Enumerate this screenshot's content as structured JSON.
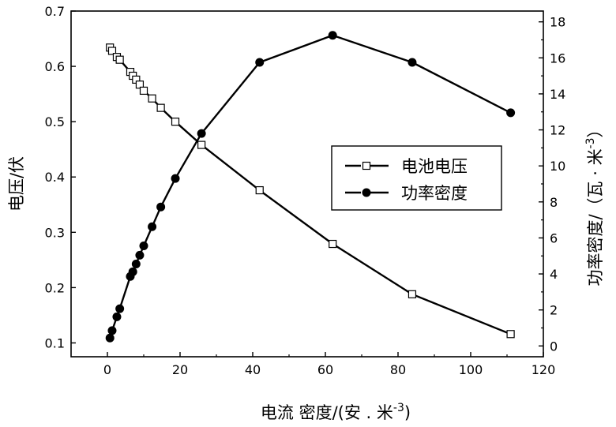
{
  "chart_data": {
    "type": "line",
    "title": "",
    "xlabel": "电流 密度/(安 . 米",
    "xlabel_sup": "-3",
    "xlabel_close": ")",
    "ylabel_left": "电压/伏",
    "ylabel_right": "功率密度/（瓦 · 米",
    "ylabel_right_sup": "-3",
    "ylabel_right_close": "）",
    "xlim": [
      -10,
      120
    ],
    "ylim_left": [
      0.075,
      0.7
    ],
    "ylim_right": [
      -0.6,
      18.6
    ],
    "x_ticks": [
      0,
      20,
      40,
      60,
      80,
      100,
      120
    ],
    "y_left_ticks": [
      0.1,
      0.2,
      0.3,
      0.4,
      0.5,
      0.6,
      0.7
    ],
    "y_right_ticks": [
      0,
      2,
      4,
      6,
      8,
      10,
      12,
      14,
      16,
      18
    ],
    "grid": false,
    "legend_position": "center-right",
    "series": [
      {
        "name": "电池电压",
        "axis": "left",
        "marker": "open-square",
        "color": "#000000",
        "x": [
          0.7,
          1.3,
          2.6,
          3.4,
          6.3,
          7.0,
          7.9,
          8.9,
          10.0,
          12.3,
          14.7,
          18.7,
          25.9,
          41.9,
          62.0,
          83.9,
          111.0
        ],
        "values": [
          0.634,
          0.628,
          0.617,
          0.612,
          0.59,
          0.583,
          0.576,
          0.567,
          0.556,
          0.542,
          0.525,
          0.5,
          0.458,
          0.376,
          0.279,
          0.188,
          0.116
        ]
      },
      {
        "name": "功率密度",
        "axis": "right",
        "marker": "filled-circle",
        "color": "#000000",
        "x": [
          0.7,
          1.3,
          2.6,
          3.4,
          6.3,
          7.0,
          7.9,
          8.9,
          10.0,
          12.3,
          14.7,
          18.7,
          25.9,
          41.9,
          62.0,
          83.9,
          111.0
        ],
        "values": [
          0.44,
          0.85,
          1.62,
          2.07,
          3.86,
          4.12,
          4.55,
          5.04,
          5.56,
          6.62,
          7.72,
          9.3,
          11.8,
          15.75,
          17.25,
          15.75,
          12.95
        ]
      }
    ]
  }
}
